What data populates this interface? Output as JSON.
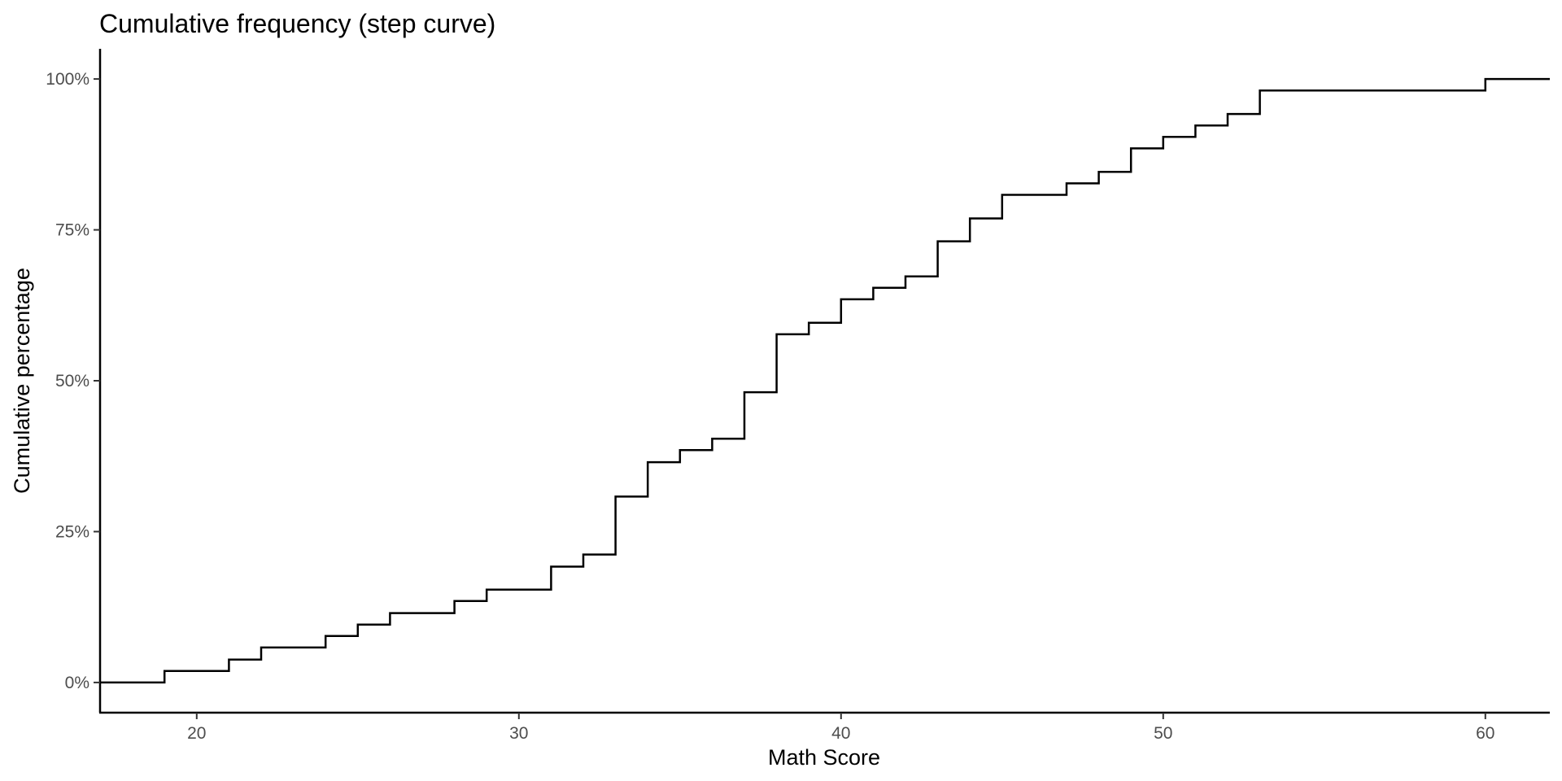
{
  "chart_data": {
    "type": "line",
    "subtype": "step",
    "title": "Cumulative frequency (step curve)",
    "xlabel": "Math Score",
    "ylabel": "Cumulative percentage",
    "xlim": [
      17,
      62
    ],
    "ylim": [
      -5,
      105
    ],
    "x_ticks": [
      20,
      30,
      40,
      50,
      60
    ],
    "y_ticks": [
      0,
      25,
      50,
      75,
      100
    ],
    "y_tick_labels": [
      "0%",
      "25%",
      "50%",
      "75%",
      "100%"
    ],
    "grid": false,
    "legend": "none",
    "series": [
      {
        "color": "#000000",
        "x": [
          17,
          19,
          21,
          22,
          24,
          25,
          26,
          28,
          29,
          31,
          32,
          33,
          34,
          35,
          36,
          37,
          38,
          39,
          40,
          41,
          42,
          43,
          44,
          45,
          47,
          48,
          49,
          50,
          51,
          52,
          53,
          60,
          62
        ],
        "y": [
          0,
          1.9,
          3.8,
          5.8,
          7.7,
          9.6,
          11.5,
          13.5,
          15.4,
          19.2,
          21.2,
          30.8,
          36.5,
          38.5,
          40.4,
          48.1,
          57.7,
          59.6,
          63.5,
          65.4,
          67.3,
          73.1,
          76.9,
          80.8,
          82.7,
          84.6,
          88.5,
          90.4,
          92.3,
          94.2,
          98.1,
          100,
          100
        ]
      }
    ]
  }
}
